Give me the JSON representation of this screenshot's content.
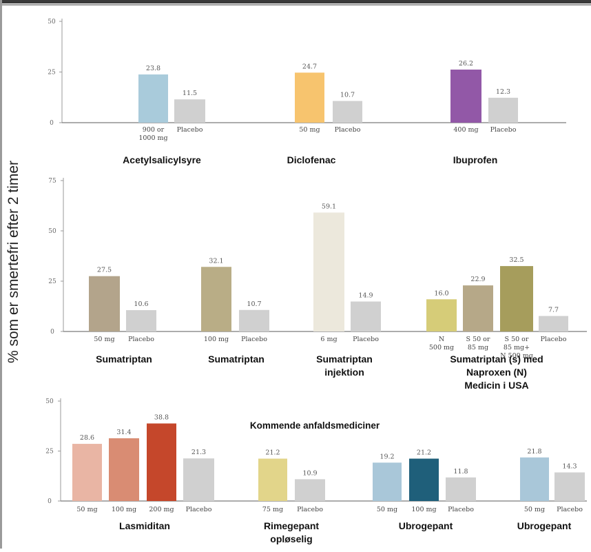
{
  "ylabel": "% som er smertefri efter 2 timer",
  "subtitle": "Kommende anfaldsmediciner",
  "chart_data": [
    {
      "type": "bar",
      "ylim": [
        0,
        50
      ],
      "yticks": [
        "0",
        "25",
        "50"
      ],
      "groups": [
        {
          "name": "Acetylsalicylsyre",
          "bars": [
            {
              "category": "900 or 1000 mg",
              "value": 23.8,
              "color": "#a9cbdb"
            },
            {
              "category": "Placebo",
              "value": 11.5,
              "color": "#d0d0d0"
            }
          ]
        },
        {
          "name": "Diclofenac",
          "bars": [
            {
              "category": "50 mg",
              "value": 24.7,
              "color": "#f7c46e"
            },
            {
              "category": "Placebo",
              "value": 10.7,
              "color": "#d0d0d0"
            }
          ]
        },
        {
          "name": "Ibuprofen",
          "bars": [
            {
              "category": "400 mg",
              "value": 26.2,
              "color": "#9258a7"
            },
            {
              "category": "Placebo",
              "value": 12.3,
              "color": "#d0d0d0"
            }
          ]
        }
      ]
    },
    {
      "type": "bar",
      "ylim": [
        0,
        75
      ],
      "yticks": [
        "0",
        "25",
        "50",
        "75"
      ],
      "groups": [
        {
          "name": "Sumatriptan",
          "bars": [
            {
              "category": "50 mg",
              "value": 27.5,
              "color": "#b3a48b"
            },
            {
              "category": "Placebo",
              "value": 10.6,
              "color": "#d0d0d0"
            }
          ]
        },
        {
          "name": "Sumatriptan",
          "bars": [
            {
              "category": "100 mg",
              "value": 32.1,
              "color": "#b9ad86"
            },
            {
              "category": "Placebo",
              "value": 10.7,
              "color": "#d0d0d0"
            }
          ]
        },
        {
          "name": "Sumatriptan injektion",
          "bars": [
            {
              "category": "6 mg",
              "value": 59.1,
              "color": "#ece8dc"
            },
            {
              "category": "Placebo",
              "value": 14.9,
              "color": "#d0d0d0"
            }
          ]
        },
        {
          "name": "Sumatriptan (s) med Naproxen (N) Medicin i USA",
          "bars": [
            {
              "category": "N 500 mg",
              "value": 16.0,
              "color": "#d6cc78"
            },
            {
              "category": "S 50 or 85 mg",
              "value": 22.9,
              "color": "#b6a888"
            },
            {
              "category": "S 50 or 85 mg+ N 500 mg",
              "value": 32.5,
              "color": "#a69d5c"
            },
            {
              "category": "Placebo",
              "value": 7.7,
              "color": "#d0d0d0"
            }
          ]
        }
      ]
    },
    {
      "type": "bar",
      "ylim": [
        0,
        50
      ],
      "yticks": [
        "0",
        "25",
        "50"
      ],
      "groups": [
        {
          "name": "Lasmiditan",
          "bars": [
            {
              "category": "50 mg",
              "value": 28.6,
              "color": "#e9b5a4"
            },
            {
              "category": "100 mg",
              "value": 31.4,
              "color": "#d98c73"
            },
            {
              "category": "200 mg",
              "value": 38.8,
              "color": "#c5472b"
            },
            {
              "category": "Placebo",
              "value": 21.3,
              "color": "#d0d0d0"
            }
          ]
        },
        {
          "name": "Rimegepant opløselig",
          "bars": [
            {
              "category": "75 mg",
              "value": 21.2,
              "color": "#e2d58a"
            },
            {
              "category": "Placebo",
              "value": 10.9,
              "color": "#d0d0d0"
            }
          ]
        },
        {
          "name": "Ubrogepant",
          "bars": [
            {
              "category": "50 mg",
              "value": 19.2,
              "color": "#a9c7d9"
            },
            {
              "category": "100 mg",
              "value": 21.2,
              "color": "#1f5f7a"
            },
            {
              "category": "Placebo",
              "value": 11.8,
              "color": "#d0d0d0"
            }
          ]
        },
        {
          "name": "Ubrogepant",
          "bars": [
            {
              "category": "50 mg",
              "value": 21.8,
              "color": "#a9c7d9"
            },
            {
              "category": "Placebo",
              "value": 14.3,
              "color": "#d0d0d0"
            }
          ]
        }
      ]
    }
  ]
}
